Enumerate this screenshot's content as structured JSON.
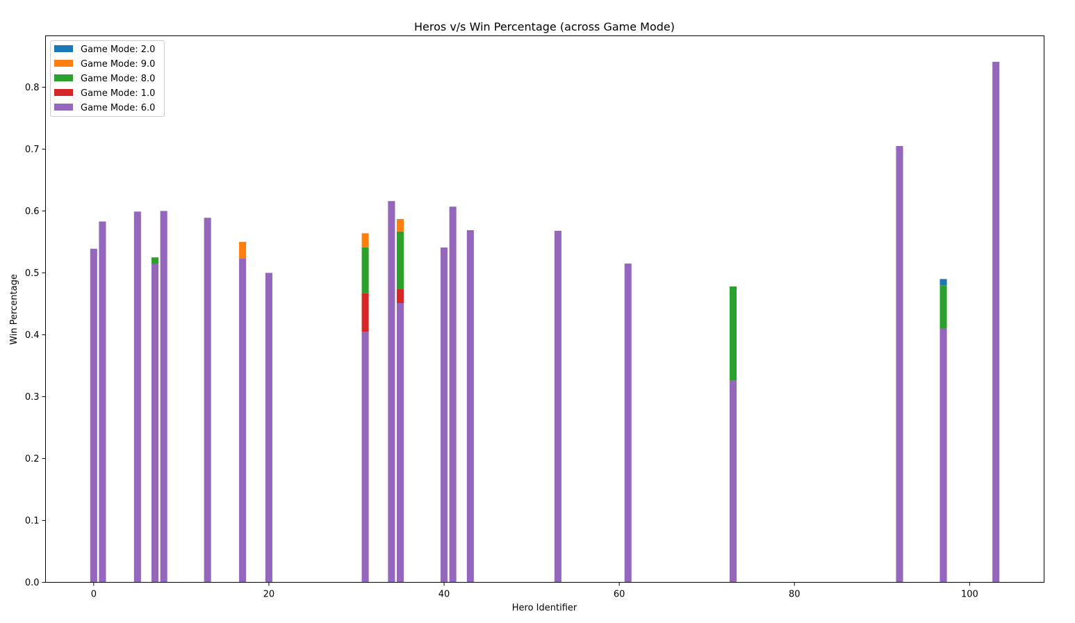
{
  "chart_data": {
    "type": "bar",
    "stacked": true,
    "title": "Heros v/s Win Percentage (across Game Mode)",
    "xlabel": "Hero Identifier",
    "ylabel": "Win Percentage",
    "xlim": [
      -5.5,
      108.5
    ],
    "ylim": [
      0,
      0.883
    ],
    "xticks": [
      0,
      20,
      40,
      60,
      80,
      100
    ],
    "yticks": [
      0.0,
      0.1,
      0.2,
      0.3,
      0.4,
      0.5,
      0.6,
      0.7,
      0.8
    ],
    "xtick_labels": [
      "0",
      "20",
      "40",
      "60",
      "80",
      "100"
    ],
    "ytick_labels": [
      "0.0",
      "0.1",
      "0.2",
      "0.3",
      "0.4",
      "0.5",
      "0.6",
      "0.7",
      "0.8"
    ],
    "grid": false,
    "legend_position": "upper-left",
    "bar_width": 0.8,
    "stack_order": [
      "Game Mode: 6.0",
      "Game Mode: 1.0",
      "Game Mode: 8.0",
      "Game Mode: 9.0",
      "Game Mode: 2.0"
    ],
    "series": [
      {
        "name": "Game Mode: 2.0",
        "color": "#1f77b4",
        "points": [
          {
            "x": 97,
            "y": 0.01
          }
        ]
      },
      {
        "name": "Game Mode: 9.0",
        "color": "#ff7f0e",
        "points": [
          {
            "x": 17,
            "y": 0.027
          },
          {
            "x": 31,
            "y": 0.023
          },
          {
            "x": 35,
            "y": 0.02
          }
        ]
      },
      {
        "name": "Game Mode: 8.0",
        "color": "#2ca02c",
        "points": [
          {
            "x": 7,
            "y": 0.011
          },
          {
            "x": 31,
            "y": 0.074
          },
          {
            "x": 35,
            "y": 0.093
          },
          {
            "x": 73,
            "y": 0.152
          },
          {
            "x": 97,
            "y": 0.07
          }
        ]
      },
      {
        "name": "Game Mode: 1.0",
        "color": "#d62728",
        "points": [
          {
            "x": 31,
            "y": 0.062
          },
          {
            "x": 35,
            "y": 0.023
          }
        ]
      },
      {
        "name": "Game Mode: 6.0",
        "color": "#9467bd",
        "points": [
          {
            "x": 0,
            "y": 0.539
          },
          {
            "x": 1,
            "y": 0.583
          },
          {
            "x": 5,
            "y": 0.599
          },
          {
            "x": 7,
            "y": 0.514
          },
          {
            "x": 8,
            "y": 0.6
          },
          {
            "x": 13,
            "y": 0.589
          },
          {
            "x": 17,
            "y": 0.523
          },
          {
            "x": 20,
            "y": 0.5
          },
          {
            "x": 31,
            "y": 0.405
          },
          {
            "x": 34,
            "y": 0.616
          },
          {
            "x": 35,
            "y": 0.451
          },
          {
            "x": 40,
            "y": 0.541
          },
          {
            "x": 41,
            "y": 0.607
          },
          {
            "x": 43,
            "y": 0.569
          },
          {
            "x": 53,
            "y": 0.568
          },
          {
            "x": 61,
            "y": 0.515
          },
          {
            "x": 73,
            "y": 0.326
          },
          {
            "x": 92,
            "y": 0.705
          },
          {
            "x": 97,
            "y": 0.41
          },
          {
            "x": 103,
            "y": 0.841
          }
        ]
      }
    ]
  }
}
